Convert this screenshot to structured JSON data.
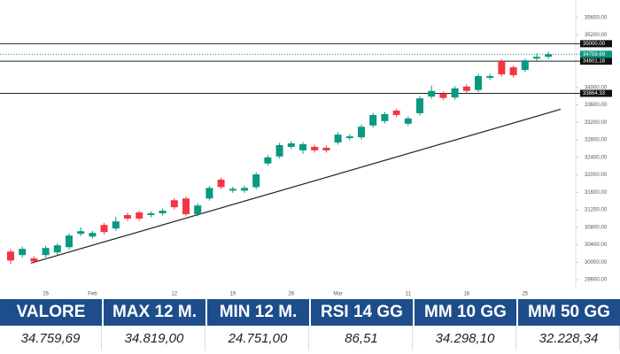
{
  "chart_data": {
    "type": "candlestick",
    "categories": [
      null,
      null,
      null,
      "26",
      null,
      null,
      null,
      "Feb",
      null,
      null,
      null,
      null,
      null,
      null,
      "12",
      null,
      null,
      null,
      null,
      "19",
      null,
      null,
      null,
      null,
      "26",
      null,
      null,
      null,
      "Mar",
      null,
      null,
      null,
      null,
      null,
      "11",
      null,
      null,
      null,
      null,
      "18",
      null,
      null,
      null,
      null,
      "25",
      null,
      null
    ],
    "open": [
      30245,
      30165,
      30090,
      30165,
      30225,
      30346,
      30651,
      30590,
      30854,
      30773,
      31080,
      31140,
      31080,
      31120,
      31420,
      31460,
      31100,
      31460,
      31890,
      31640,
      31640,
      31720,
      32260,
      32420,
      32640,
      32560,
      32640,
      32620,
      32740,
      32840,
      32860,
      33130,
      33230,
      33470,
      33170,
      33410,
      33790,
      33860,
      33770,
      34020,
      33940,
      34220,
      34600,
      34460,
      34400,
      34660,
      34700
    ],
    "high": [
      30300,
      30360,
      30140,
      30380,
      30440,
      30660,
      30800,
      30720,
      30900,
      31040,
      31130,
      31180,
      31170,
      31230,
      31470,
      31500,
      31350,
      31750,
      31940,
      31730,
      31750,
      32060,
      32450,
      32730,
      32770,
      32750,
      32690,
      32670,
      32970,
      32930,
      33150,
      33420,
      33440,
      33510,
      33340,
      33800,
      34040,
      33910,
      34030,
      34070,
      34310,
      34310,
      34640,
      34500,
      34660,
      34780,
      34819
    ],
    "low": [
      29960,
      30110,
      29980,
      30110,
      30170,
      30290,
      30600,
      30540,
      30640,
      30720,
      30950,
      30950,
      31030,
      31070,
      31210,
      31050,
      31050,
      31410,
      31670,
      31590,
      31590,
      31670,
      32210,
      32370,
      32590,
      32480,
      32510,
      32510,
      32690,
      32790,
      32810,
      33080,
      33180,
      33320,
      33120,
      33360,
      33740,
      33710,
      33720,
      33870,
      33890,
      34170,
      34250,
      34230,
      34350,
      34610,
      34650
    ],
    "close": [
      30040,
      30307,
      30020,
      30327,
      30388,
      30611,
      30712,
      30672,
      30692,
      30935,
      31000,
      31000,
      31120,
      31180,
      31260,
      31100,
      31300,
      31700,
      31720,
      31680,
      31700,
      32010,
      32400,
      32680,
      32720,
      32700,
      32560,
      32560,
      32920,
      32880,
      33100,
      33370,
      33390,
      33370,
      33290,
      33750,
      33920,
      33760,
      33980,
      33920,
      34260,
      34260,
      34300,
      34280,
      34620,
      34700,
      34759.69
    ],
    "up_color": "#089981",
    "down_color": "#f23645",
    "ylim": [
      29400,
      36000
    ],
    "yticks": [
      {
        "value": 29600,
        "label": "29600.00"
      },
      {
        "value": 30000,
        "label": "30000.00"
      },
      {
        "value": 30400,
        "label": "30400.00"
      },
      {
        "value": 30800,
        "label": "30800.00"
      },
      {
        "value": 31200,
        "label": "31200.00"
      },
      {
        "value": 31600,
        "label": "31600.00"
      },
      {
        "value": 32000,
        "label": "32000.00"
      },
      {
        "value": 32400,
        "label": "32400.00"
      },
      {
        "value": 32800,
        "label": "32800.00"
      },
      {
        "value": 33200,
        "label": "33200.00"
      },
      {
        "value": 33600,
        "label": "33600.00"
      },
      {
        "value": 34000,
        "label": "34000.00"
      },
      {
        "value": 35200,
        "label": "35200.00"
      },
      {
        "value": 35600,
        "label": "35600.00"
      }
    ],
    "levels": [
      {
        "value": 35000,
        "label": "35000.00"
      },
      {
        "value": 34601.16,
        "label": "34601.16"
      },
      {
        "value": 33864.33,
        "label": "33864.33"
      }
    ],
    "last_price": {
      "value": 34759.69,
      "label": "34759.69"
    },
    "trendline": {
      "start": 29980,
      "end": 33500
    }
  },
  "table": {
    "headers": [
      "VALORE",
      "MAX 12 M.",
      "MIN 12 M.",
      "RSI 14 GG",
      "MM 10 GG",
      "MM 50 GG"
    ],
    "rows": [
      [
        "34.759,69",
        "34.819,00",
        "24.751,00",
        "86,51",
        "34.298,10",
        "32.228,34"
      ]
    ],
    "header_color": "#1e4d8c"
  }
}
